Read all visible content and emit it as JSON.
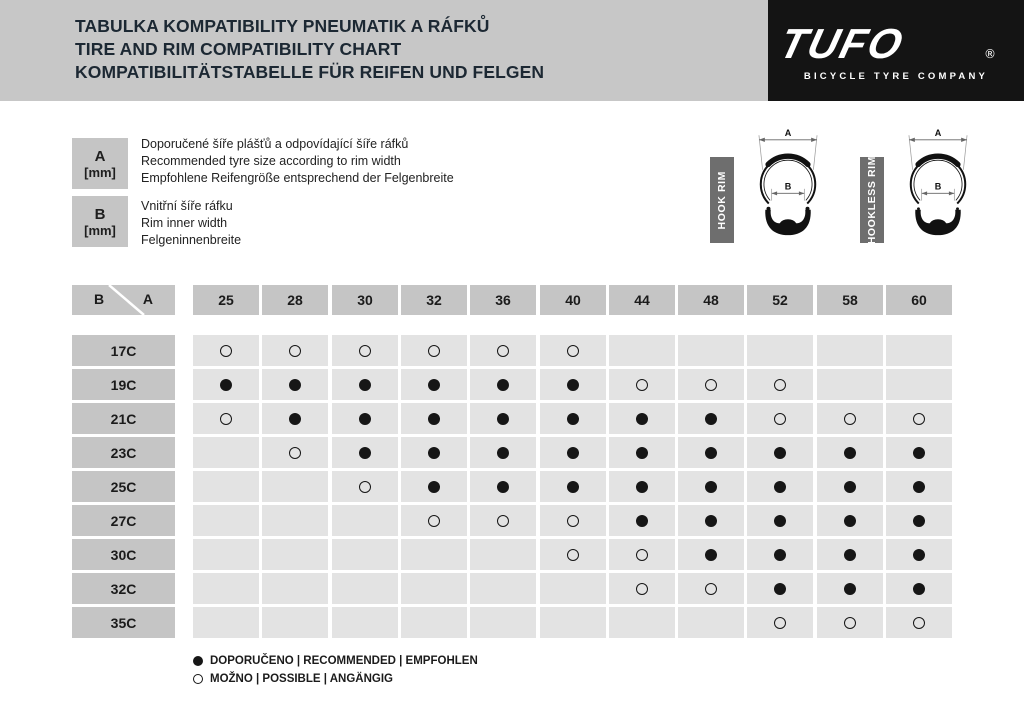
{
  "header": {
    "title_lines": [
      "TABULKA KOMPATIBILITY PNEUMATIK A RÁFKŮ",
      "TIRE AND RIM COMPATIBILITY CHART",
      "KOMPATIBILITÄTSTABELLE FÜR REIFEN UND FELGEN"
    ],
    "logo": {
      "brand": "TUFO",
      "registered": "®",
      "tagline": "BICYCLE TYRE COMPANY"
    }
  },
  "key": {
    "items": [
      {
        "symbol": "A",
        "unit": "[mm]",
        "lines": [
          "Doporučené šíře plášťů a odpovídající šíře ráfků",
          "Recommended tyre size according to rim width",
          "Empfohlene Reifengröße entsprechend der Felgenbreite"
        ]
      },
      {
        "symbol": "B",
        "unit": "[mm]",
        "lines": [
          "Vnitřní šíře ráfku",
          "Rim inner width",
          "Felgeninnenbreite"
        ]
      }
    ]
  },
  "diagrams": [
    {
      "label": "HOOK RIM",
      "dim_outer": "A",
      "dim_inner": "B"
    },
    {
      "label": "HOOKLESS RIM",
      "dim_outer": "A",
      "dim_inner": "B"
    }
  ],
  "chart_data": {
    "type": "table",
    "title": "TIRE AND RIM COMPATIBILITY CHART",
    "row_axis_label": "B",
    "col_axis_label": "A",
    "columns": [
      "25",
      "28",
      "30",
      "32",
      "36",
      "40",
      "44",
      "48",
      "52",
      "58",
      "60"
    ],
    "rows": [
      "17C",
      "19C",
      "21C",
      "23C",
      "25C",
      "27C",
      "30C",
      "32C",
      "35C"
    ],
    "cell_legend": {
      "R": "recommended (filled dot)",
      "P": "possible (open dot)",
      "": "not compatible"
    },
    "matrix": [
      [
        "P",
        "P",
        "P",
        "P",
        "P",
        "P",
        "",
        "",
        "",
        "",
        ""
      ],
      [
        "R",
        "R",
        "R",
        "R",
        "R",
        "R",
        "P",
        "P",
        "P",
        "",
        ""
      ],
      [
        "P",
        "R",
        "R",
        "R",
        "R",
        "R",
        "R",
        "R",
        "P",
        "P",
        "P"
      ],
      [
        "",
        "P",
        "R",
        "R",
        "R",
        "R",
        "R",
        "R",
        "R",
        "R",
        "R"
      ],
      [
        "",
        "",
        "P",
        "R",
        "R",
        "R",
        "R",
        "R",
        "R",
        "R",
        "R"
      ],
      [
        "",
        "",
        "",
        "P",
        "P",
        "P",
        "R",
        "R",
        "R",
        "R",
        "R"
      ],
      [
        "",
        "",
        "",
        "",
        "",
        "P",
        "P",
        "R",
        "R",
        "R",
        "R"
      ],
      [
        "",
        "",
        "",
        "",
        "",
        "",
        "P",
        "P",
        "R",
        "R",
        "R"
      ],
      [
        "",
        "",
        "",
        "",
        "",
        "",
        "",
        "",
        "P",
        "P",
        "P"
      ]
    ]
  },
  "footer": {
    "recommended_label": "DOPORUČENO | RECOMMENDED | EMPFOHLEN",
    "possible_label": "MOŽNO | POSSIBLE | ANGÄNGIG"
  },
  "colors": {
    "band": "#c7c7c7",
    "title_text": "#1c2833",
    "logo_bg": "#141414",
    "header_cell": "#c5c5c5",
    "data_cell": "#e3e3e3",
    "rim_label_bg": "#6e6e6e",
    "dot": "#161616"
  }
}
